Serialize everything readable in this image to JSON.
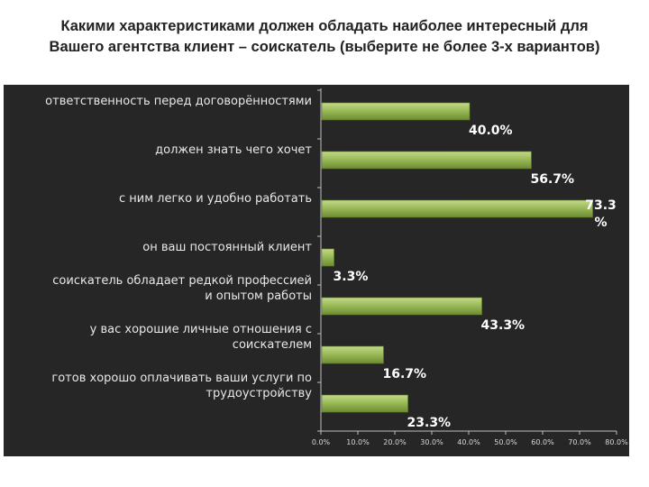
{
  "slide": {
    "title_line1": "Какими характеристиками должен обладать наиболее интересный для",
    "title_line2": "Вашего агентства клиент – соискатель (выберите не более 3-х вариантов)"
  },
  "colors": {
    "panel_background": "#262626",
    "bar_fill": "#9bbb59",
    "bar_fill_dark": "#6e8c33",
    "text": "#ffffff"
  },
  "chart_data": {
    "type": "bar",
    "orientation": "horizontal",
    "categories": [
      [
        "ответственность перед договорённостями"
      ],
      [
        "должен знать чего хочет"
      ],
      [
        "с ним легко и удобно работать"
      ],
      [
        "он ваш постоянный клиент"
      ],
      [
        "соискатель обладает редкой профессией",
        "и опытом работы"
      ],
      [
        "у вас хорошие личные отношения с",
        "соискателем"
      ],
      [
        "готов хорошо оплачивать ваши услуги по",
        "трудоустройству"
      ]
    ],
    "values": [
      40.0,
      56.7,
      73.3,
      3.3,
      43.3,
      16.7,
      23.3
    ],
    "data_labels": [
      [
        "40.0%"
      ],
      [
        "56.7%"
      ],
      [
        "73.3",
        "%"
      ],
      [
        "3.3%"
      ],
      [
        "43.3%"
      ],
      [
        "16.7%"
      ],
      [
        "23.3%"
      ]
    ],
    "xlim": [
      0,
      80
    ],
    "x_ticks": [
      0,
      10,
      20,
      30,
      40,
      50,
      60,
      70,
      80
    ],
    "x_tick_labels": [
      "0.0%",
      "10.0%",
      "20.0%",
      "30.0%",
      "40.0%",
      "50.0%",
      "60.0%",
      "70.0%",
      "80.0%"
    ],
    "grid": false,
    "legend": "none"
  }
}
